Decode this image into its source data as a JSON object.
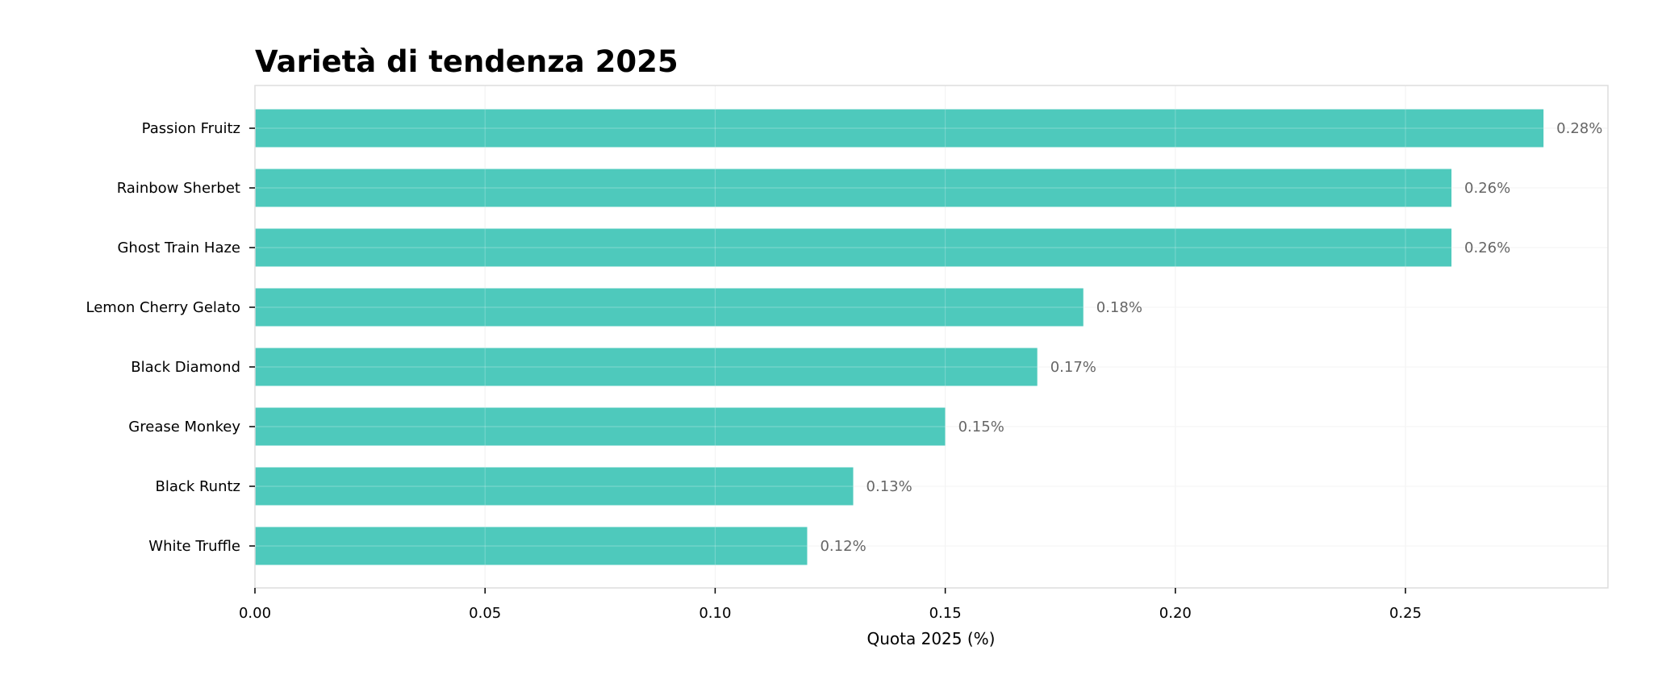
{
  "chart_data": {
    "type": "bar",
    "orientation": "horizontal",
    "title": "Varietà di tendenza 2025",
    "xlabel": "Quota 2025 (%)",
    "ylabel": "",
    "categories": [
      "Passion Fruitz",
      "Rainbow Sherbet",
      "Ghost Train Haze",
      "Lemon Cherry Gelato",
      "Black Diamond",
      "Grease Monkey",
      "Black Runtz",
      "White Truffle"
    ],
    "values": [
      0.28,
      0.26,
      0.26,
      0.18,
      0.17,
      0.15,
      0.13,
      0.12
    ],
    "data_labels": [
      "0.28%",
      "0.26%",
      "0.26%",
      "0.18%",
      "0.17%",
      "0.15%",
      "0.13%",
      "0.12%"
    ],
    "xticks": [
      "0.00",
      "0.05",
      "0.10",
      "0.15",
      "0.20",
      "0.25"
    ],
    "xtick_values": [
      0,
      0.05,
      0.1,
      0.15,
      0.2,
      0.25
    ],
    "xlim": [
      0,
      0.294
    ],
    "grid": true,
    "bar_color": "#4ec9bc",
    "label_color": "#666666"
  }
}
